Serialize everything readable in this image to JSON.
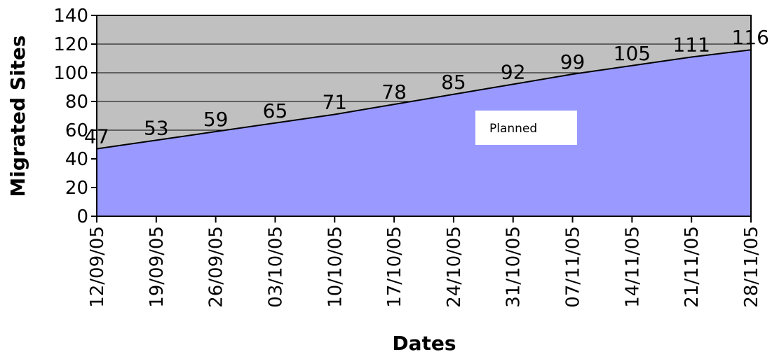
{
  "chart_data": {
    "type": "area",
    "title": "",
    "xlabel": "Dates",
    "ylabel": "Migrated Sites",
    "ylim": [
      0,
      140
    ],
    "yticks": [
      0,
      20,
      40,
      60,
      80,
      100,
      120,
      140
    ],
    "grid": true,
    "legend_placement": "center-right",
    "categories": [
      "12/09/05",
      "19/09/05",
      "26/09/05",
      "03/10/05",
      "10/10/05",
      "17/10/05",
      "24/10/05",
      "31/10/05",
      "07/11/05",
      "14/11/05",
      "21/11/05",
      "28/11/05"
    ],
    "series": [
      {
        "name": "Planned",
        "values": [
          47,
          53,
          59,
          65,
          71,
          78,
          85,
          92,
          99,
          105,
          111,
          116
        ],
        "color": "#9999ff"
      }
    ],
    "colors": {
      "plot_background": "#c0c0c0",
      "area_fill": "#9999ff",
      "line": "#000000",
      "gridline": "#000000"
    }
  }
}
